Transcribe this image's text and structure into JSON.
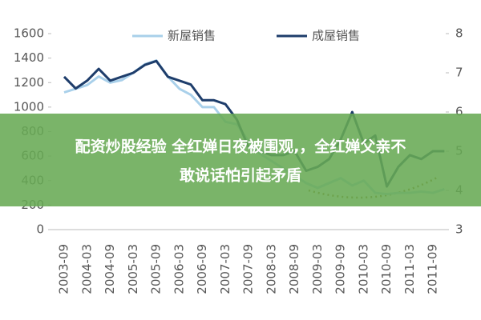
{
  "chart_data": {
    "type": "line",
    "categories": [
      "2003-09",
      null,
      "2004-03",
      null,
      "2004-09",
      null,
      "2005-03",
      null,
      "2005-09",
      null,
      "2006-03",
      null,
      "2006-09",
      null,
      "2007-03",
      null,
      "2007-09",
      null,
      "2008-03",
      null,
      "2008-09",
      null,
      "2009-03",
      null,
      "2009-09",
      null,
      "2010-03",
      null,
      "2010-09",
      null,
      "2011-03",
      null,
      "2011-09",
      null
    ],
    "series": [
      {
        "name": "新屋销售",
        "color": "#a9d0ea",
        "axis": "y",
        "values": [
          1120,
          1150,
          1180,
          1250,
          1200,
          1220,
          1280,
          1350,
          1380,
          1250,
          1150,
          1100,
          1000,
          1000,
          880,
          860,
          720,
          620,
          560,
          500,
          440,
          380,
          340,
          380,
          420,
          360,
          400,
          300,
          290,
          300,
          300,
          310,
          300,
          330
        ]
      },
      {
        "name": "成屋销售",
        "color": "#1e3d6b",
        "axis": "y2",
        "values": [
          6.9,
          6.6,
          6.8,
          7.1,
          6.8,
          6.9,
          7.0,
          7.2,
          7.3,
          6.9,
          6.8,
          6.7,
          6.3,
          6.3,
          6.2,
          5.8,
          5.1,
          5.0,
          4.9,
          4.9,
          5.0,
          4.5,
          4.6,
          4.8,
          5.3,
          6.0,
          5.2,
          5.4,
          4.1,
          4.6,
          4.9,
          4.8,
          5.0,
          5.0
        ]
      }
    ],
    "ylim": [
      0,
      1600
    ],
    "yticks": [
      0,
      200,
      400,
      600,
      800,
      1000,
      1200,
      1400,
      1600
    ],
    "y2lim": [
      3,
      8
    ],
    "y2ticks": [
      3,
      4,
      5,
      6,
      7,
      8
    ]
  },
  "banner": {
    "lines": [
      "配资炒股经验 全红婵日夜被围观,，全红婵父亲不",
      "敢说话怕引起矛盾"
    ]
  }
}
